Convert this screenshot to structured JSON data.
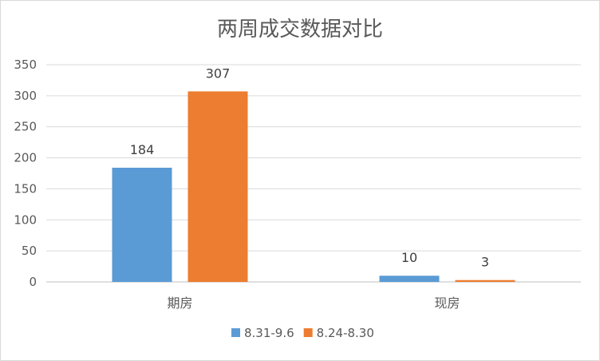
{
  "chart_data": {
    "type": "bar",
    "title": "两周成交数据对比",
    "categories": [
      "期房",
      "现房"
    ],
    "series": [
      {
        "name": "8.31-9.6",
        "values": [
          184,
          10
        ],
        "color": "#5b9bd5"
      },
      {
        "name": "8.24-8.30",
        "values": [
          307,
          3
        ],
        "color": "#ed7d31"
      }
    ],
    "ylim": [
      0,
      350
    ],
    "yticks": [
      0,
      50,
      100,
      150,
      200,
      250,
      300,
      350
    ],
    "grid": true,
    "legend": "bottom"
  }
}
